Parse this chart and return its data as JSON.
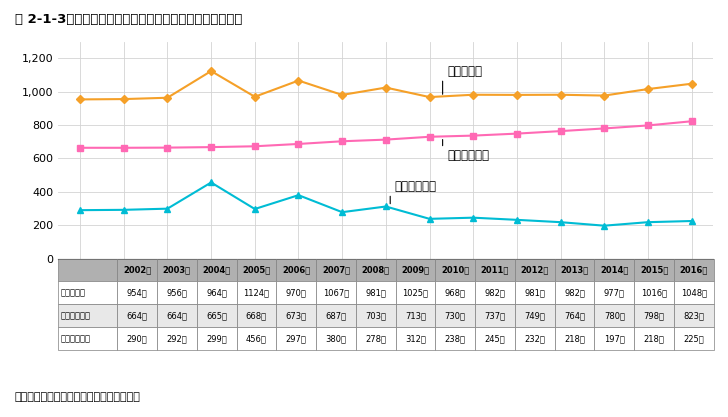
{
  "title": "図 2-1-3　短時間労働者（保育士・女）　時給と最賃推移",
  "years": [
    2002,
    2003,
    2004,
    2005,
    2006,
    2007,
    2008,
    2009,
    2010,
    2011,
    2012,
    2013,
    2014,
    2015,
    2016
  ],
  "hoikushi": [
    954,
    956,
    964,
    1124,
    970,
    1067,
    981,
    1025,
    968,
    982,
    981,
    982,
    977,
    1016,
    1048
  ],
  "saichin": [
    664,
    664,
    665,
    668,
    673,
    687,
    703,
    713,
    730,
    737,
    749,
    764,
    780,
    798,
    823
  ],
  "sagas": [
    290,
    292,
    299,
    456,
    297,
    380,
    278,
    312,
    238,
    245,
    232,
    218,
    197,
    218,
    225
  ],
  "hoikushi_color": "#F5A028",
  "saichin_color": "#FF69B4",
  "sagas_color": "#00BCD4",
  "hoikushi_label": "保育士・女",
  "saichin_label": "最賃加重平均",
  "sagas_label": "最賃との差額",
  "source": "資料：「賃金構造基本統計調査」より作成",
  "ylim": [
    0,
    1300
  ],
  "yticks": [
    0,
    200,
    400,
    600,
    800,
    1000,
    1200
  ],
  "hoikushi_str": [
    "954円",
    "956円",
    "964円",
    "1124円",
    "970円",
    "1067円",
    "981円",
    "1025円",
    "968円",
    "982円",
    "981円",
    "982円",
    "977円",
    "1016円",
    "1048円"
  ],
  "saichin_str": [
    "664円",
    "664円",
    "665円",
    "668円",
    "673円",
    "687円",
    "703円",
    "713円",
    "730円",
    "737円",
    "749円",
    "764円",
    "780円",
    "798円",
    "823円"
  ],
  "sagas_str": [
    "290円",
    "292円",
    "299円",
    "456円",
    "297円",
    "380円",
    "278円",
    "312円",
    "238円",
    "245円",
    "232円",
    "218円",
    "197円",
    "218円",
    "225円"
  ],
  "table_header_bg": "#b0b0b0",
  "table_row1_bg": "#ffffff",
  "table_row2_bg": "#e8e8e8",
  "table_row3_bg": "#ffffff"
}
